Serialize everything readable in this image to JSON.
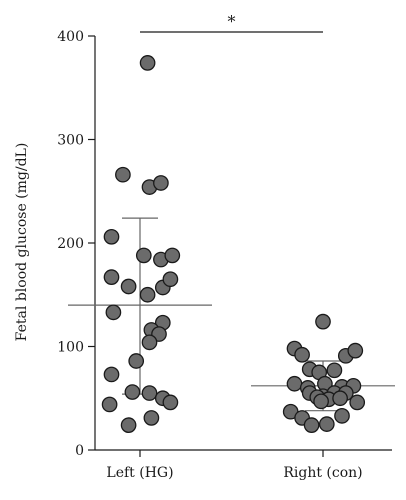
{
  "chart_data": {
    "type": "scatter",
    "title": "",
    "xlabel": "",
    "ylabel": "Fetal blood glucose (mg/dL)",
    "ylim": [
      0,
      400
    ],
    "yticks": [
      0,
      100,
      200,
      300,
      400
    ],
    "categories": [
      "Left (HG)",
      "Right (con)"
    ],
    "grid": false,
    "point_color": "#6b6b6b",
    "significance": {
      "label": "*",
      "between": [
        "Left (HG)",
        "Right (con)"
      ]
    },
    "series": [
      {
        "category": "Left (HG)",
        "mean": 140,
        "sd_upper": 224,
        "sd_lower": 54,
        "points": [
          {
            "offset": 0.2,
            "value": 374
          },
          {
            "offset": -0.45,
            "value": 266
          },
          {
            "offset": 0.25,
            "value": 254
          },
          {
            "offset": 0.55,
            "value": 258
          },
          {
            "offset": -0.75,
            "value": 206
          },
          {
            "offset": 0.1,
            "value": 188
          },
          {
            "offset": 0.55,
            "value": 184
          },
          {
            "offset": 0.85,
            "value": 188
          },
          {
            "offset": -0.75,
            "value": 167
          },
          {
            "offset": -0.3,
            "value": 158
          },
          {
            "offset": 0.6,
            "value": 157
          },
          {
            "offset": 0.8,
            "value": 165
          },
          {
            "offset": 0.2,
            "value": 150
          },
          {
            "offset": -0.7,
            "value": 133
          },
          {
            "offset": 0.6,
            "value": 123
          },
          {
            "offset": 0.3,
            "value": 116
          },
          {
            "offset": 0.5,
            "value": 112
          },
          {
            "offset": 0.25,
            "value": 104
          },
          {
            "offset": -0.1,
            "value": 86
          },
          {
            "offset": -0.75,
            "value": 73
          },
          {
            "offset": -0.2,
            "value": 56
          },
          {
            "offset": 0.25,
            "value": 55
          },
          {
            "offset": 0.6,
            "value": 50
          },
          {
            "offset": 0.8,
            "value": 46
          },
          {
            "offset": -0.8,
            "value": 44
          },
          {
            "offset": 0.3,
            "value": 31
          },
          {
            "offset": -0.3,
            "value": 24
          }
        ]
      },
      {
        "category": "Right (con)",
        "mean": 62,
        "sd_upper": 86,
        "sd_lower": 38,
        "points": [
          {
            "offset": 0.0,
            "value": 124
          },
          {
            "offset": -0.75,
            "value": 98
          },
          {
            "offset": -0.55,
            "value": 92
          },
          {
            "offset": 0.6,
            "value": 91
          },
          {
            "offset": 0.85,
            "value": 96
          },
          {
            "offset": -0.35,
            "value": 78
          },
          {
            "offset": 0.3,
            "value": 77
          },
          {
            "offset": -0.1,
            "value": 75
          },
          {
            "offset": -0.75,
            "value": 64
          },
          {
            "offset": -0.4,
            "value": 60
          },
          {
            "offset": 0.05,
            "value": 64
          },
          {
            "offset": 0.5,
            "value": 61
          },
          {
            "offset": 0.8,
            "value": 62
          },
          {
            "offset": -0.35,
            "value": 55
          },
          {
            "offset": 0.0,
            "value": 52
          },
          {
            "offset": 0.3,
            "value": 55
          },
          {
            "offset": 0.6,
            "value": 55
          },
          {
            "offset": -0.15,
            "value": 51
          },
          {
            "offset": 0.15,
            "value": 49
          },
          {
            "offset": 0.45,
            "value": 50
          },
          {
            "offset": -0.05,
            "value": 47
          },
          {
            "offset": 0.9,
            "value": 46
          },
          {
            "offset": -0.85,
            "value": 37
          },
          {
            "offset": -0.55,
            "value": 31
          },
          {
            "offset": 0.5,
            "value": 33
          },
          {
            "offset": -0.3,
            "value": 24
          },
          {
            "offset": 0.1,
            "value": 25
          }
        ]
      }
    ]
  }
}
